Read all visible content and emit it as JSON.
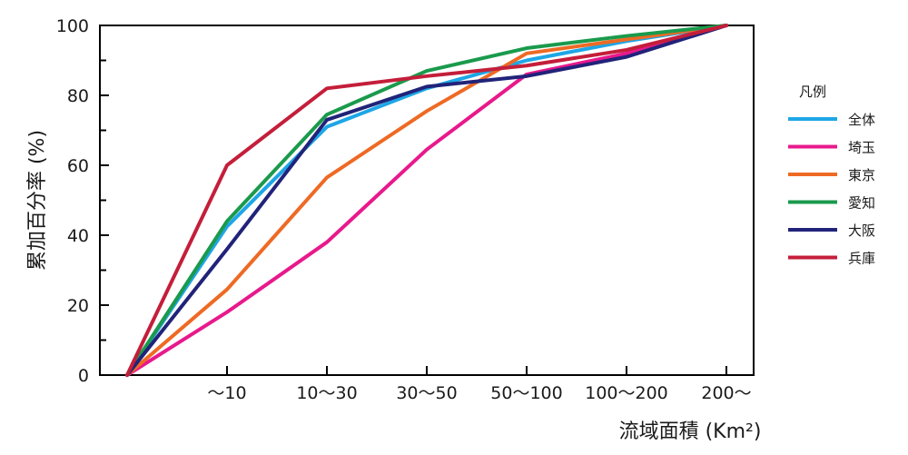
{
  "chart_data": {
    "type": "line",
    "categories": [
      "",
      "～10",
      "10～30",
      "30～50",
      "50～100",
      "100～200",
      "200～"
    ],
    "ylim": [
      0,
      100
    ],
    "yticks": [
      0,
      20,
      40,
      60,
      80,
      100
    ],
    "ylabel": "累加百分率 (%)",
    "xlabel": "流域面積 (Km²)",
    "grid": false,
    "legend": {
      "title": "凡例",
      "position": "right"
    },
    "series": [
      {
        "name": "全体",
        "color": "#1ea6e6",
        "values": [
          0,
          42.5,
          71,
          82,
          90,
          95.5,
          100
        ]
      },
      {
        "name": "埼玉",
        "color": "#e8198c",
        "values": [
          0,
          18,
          38,
          64.5,
          86,
          92,
          100
        ]
      },
      {
        "name": "東京",
        "color": "#ee6a24",
        "values": [
          0,
          24.5,
          56.5,
          75.5,
          92,
          96,
          100
        ]
      },
      {
        "name": "愛知",
        "color": "#1a9a4c",
        "values": [
          0,
          44,
          74.5,
          87,
          93.5,
          97,
          100
        ]
      },
      {
        "name": "大阪",
        "color": "#21237a",
        "values": [
          0,
          36,
          73,
          82.5,
          85.5,
          91,
          100
        ]
      },
      {
        "name": "兵庫",
        "color": "#c41e3a",
        "values": [
          0,
          60,
          82,
          85.5,
          88.5,
          93,
          100
        ]
      }
    ]
  }
}
